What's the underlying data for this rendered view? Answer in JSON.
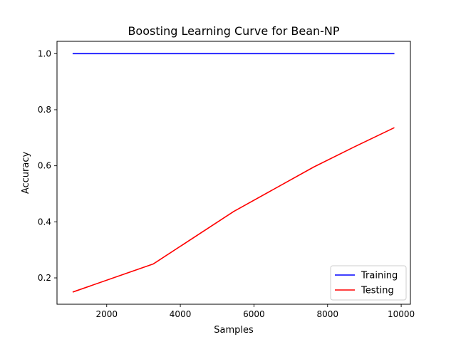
{
  "chart_data": {
    "type": "line",
    "title": "Boosting Learning Curve for Bean-NP",
    "xlabel": "Samples",
    "ylabel": "Accuracy",
    "xlim": [
      650,
      10250
    ],
    "ylim": [
      0.106,
      1.044
    ],
    "x_ticks": [
      2000,
      4000,
      6000,
      8000,
      10000
    ],
    "y_ticks": [
      0.2,
      0.4,
      0.6,
      0.8,
      1.0
    ],
    "x_tick_labels": [
      "2000",
      "4000",
      "6000",
      "8000",
      "10000"
    ],
    "y_tick_labels": [
      "0.2",
      "0.4",
      "0.6",
      "0.8",
      "1.0"
    ],
    "grid": false,
    "legend_position": "lower-right",
    "series": [
      {
        "name": "Training",
        "color": "#0000ff",
        "x": [
          1090,
          3270,
          5450,
          7630,
          8720,
          9800
        ],
        "y": [
          1.0,
          1.0,
          1.0,
          1.0,
          1.0,
          1.0
        ]
      },
      {
        "name": "Testing",
        "color": "#ff0000",
        "x": [
          1090,
          3270,
          5450,
          7630,
          8720,
          9800
        ],
        "y": [
          0.15,
          0.25,
          0.437,
          0.596,
          0.667,
          0.735
        ]
      }
    ]
  }
}
